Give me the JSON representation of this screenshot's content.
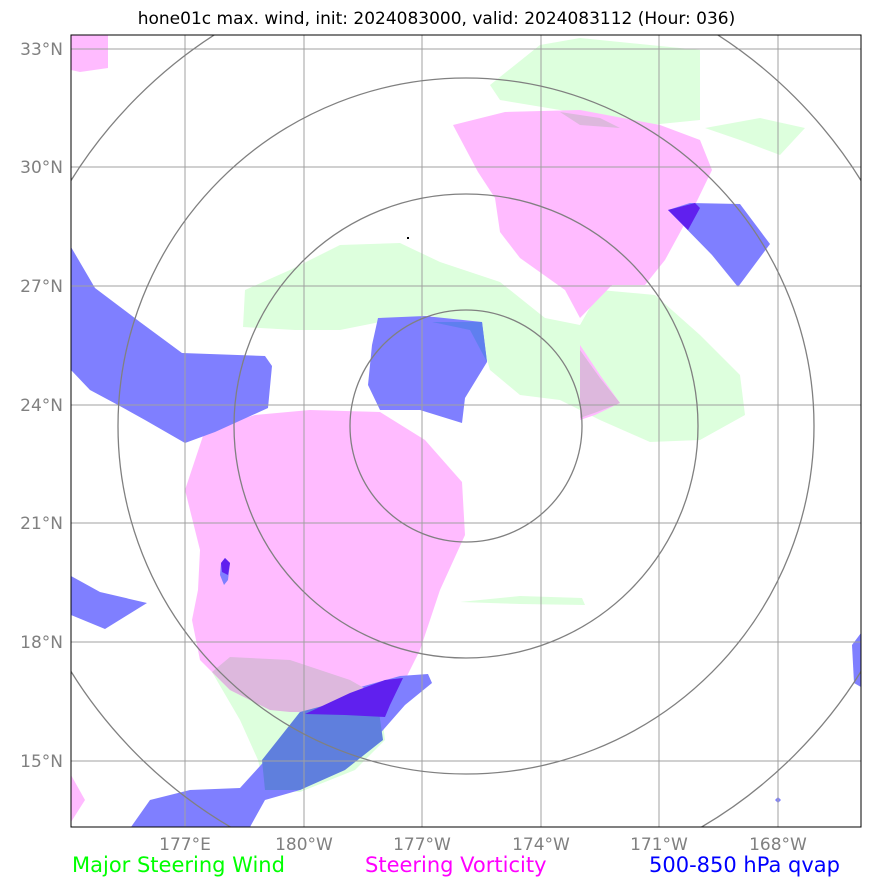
{
  "title": "hone01c max. wind, init: 2024083000, valid: 2024083112 (Hour: 036)",
  "lat_labels": [
    "33°N",
    "30°N",
    "27°N",
    "24°N",
    "21°N",
    "18°N",
    "15°N"
  ],
  "lon_labels": [
    "177°E",
    "180°W",
    "177°W",
    "174°W",
    "171°W",
    "168°W"
  ],
  "legend": {
    "wind": "Major Steering Wind",
    "vorticity": "Steering Vorticity",
    "qvap": "500-850 hPa qvap"
  },
  "colors": {
    "wind": "#00ff00",
    "vorticity": "#ff00ff",
    "qvap": "#0000ff",
    "grid": "#a0a0a0",
    "rings": "#808080",
    "tick_label": "#808080"
  }
}
